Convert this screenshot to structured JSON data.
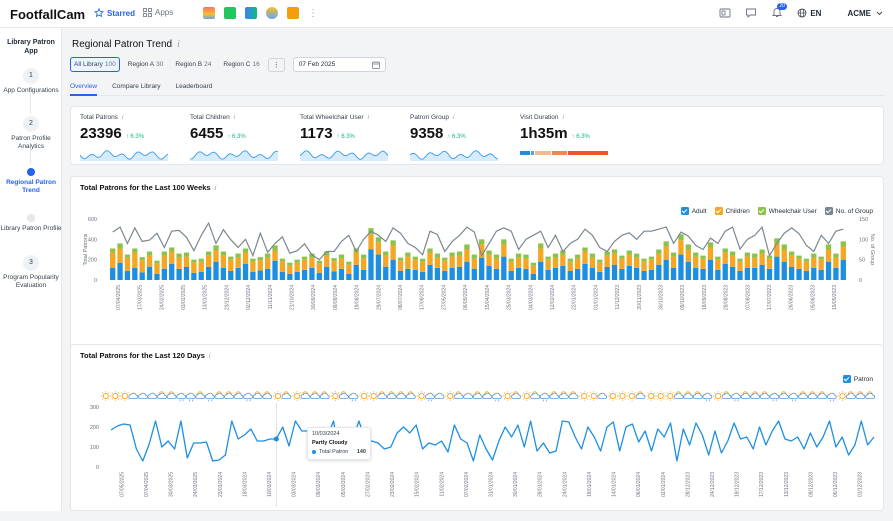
{
  "app": {
    "logo": "FootfallCam",
    "starred": "Starred",
    "apps": "Apps",
    "notif_count": "20",
    "lang": "EN",
    "account": "ACME"
  },
  "sidebar": {
    "title": "Library Patron App",
    "steps": [
      {
        "num": "1",
        "label": "App Configurations"
      },
      {
        "num": "2",
        "label": "Patron Profile Analytics"
      },
      {
        "num": "",
        "label": "Regional Patron Trend"
      },
      {
        "num": "",
        "label": "Library Patron Profile"
      },
      {
        "num": "3",
        "label": "Program Popularity Evaluation"
      }
    ]
  },
  "page": {
    "title": "Regional Patron Trend",
    "info": "i"
  },
  "filters": {
    "items": [
      {
        "label": "All Library",
        "count": "100"
      },
      {
        "label": "Region A",
        "count": "30"
      },
      {
        "label": "Region B",
        "count": "24"
      },
      {
        "label": "Region C",
        "count": "16"
      }
    ],
    "more": "⋮",
    "date": "07 Feb 2025"
  },
  "tabs": [
    "Overview",
    "Compare Library",
    "Leaderboard"
  ],
  "kpis": [
    {
      "label": "Total Patrons",
      "value": "23396",
      "change": "↑ 6.3%"
    },
    {
      "label": "Total Children",
      "value": "6455",
      "change": "↑ 6.3%"
    },
    {
      "label": "Total Wheelchair User",
      "value": "1173",
      "change": "↑ 6.3%"
    },
    {
      "label": "Patron Group",
      "value": "9358",
      "change": "↑ 6.3%"
    },
    {
      "label": "Visit Duration",
      "value": "1h35m",
      "change": "↑ 6.3%"
    }
  ],
  "colors": {
    "adult": "#1d8fe1",
    "children": "#f5a623",
    "wheelchair": "#8bc34a",
    "group": "#7b8791",
    "patron": "#1d8fe1",
    "accent": "#2563eb"
  },
  "chart_data": [
    {
      "type": "bar",
      "title": "Total Patrons for the Last 100 Weeks",
      "ylabel": "Total Patrons",
      "ylabel_right": "No. of Group",
      "ylim": [
        0,
        600
      ],
      "ylim_right": [
        0,
        150
      ],
      "yticks": [
        "600",
        "400",
        "200",
        "0"
      ],
      "yticks_right": [
        "150",
        "100",
        "50",
        "0"
      ],
      "legend": [
        "Adult",
        "Children",
        "Wheelchair User",
        "No. of Group"
      ],
      "legend_position": "top-right",
      "xtick_labels": [
        "07/04/2025",
        "17/03/2025",
        "24/02/2025",
        "03/02/2025",
        "13/01/2025",
        "23/12/2024",
        "02/12/2024",
        "11/11/2024",
        "21/10/2024",
        "30/09/2024",
        "09/09/2024",
        "19/08/2024",
        "29/07/2024",
        "08/07/2024",
        "17/06/2024",
        "27/05/2024",
        "06/05/2024",
        "15/04/2024",
        "25/03/2024",
        "04/03/2024",
        "12/02/2024",
        "22/01/2024",
        "01/01/2024",
        "11/12/2023",
        "20/11/2023",
        "30/10/2023",
        "09/10/2023",
        "18/09/2023",
        "28/08/2023",
        "07/08/2023",
        "17/07/2023",
        "26/06/2023",
        "05/06/2023",
        "15/05/2023"
      ],
      "series": [
        {
          "name": "Adult",
          "values": [
            120,
            170,
            90,
            120,
            75,
            130,
            60,
            110,
            160,
            110,
            130,
            70,
            80,
            130,
            180,
            120,
            90,
            120,
            160,
            80,
            95,
            110,
            190,
            80,
            60,
            80,
            100,
            120,
            70,
            130,
            85,
            110,
            60,
            150,
            100,
            300,
            250,
            130,
            200,
            90,
            110,
            100,
            80,
            150,
            120,
            90,
            120,
            130,
            180,
            110,
            220,
            140,
            110,
            230,
            90,
            120,
            110,
            60,
            180,
            100,
            120,
            140,
            90,
            110,
            160,
            120,
            80,
            130,
            150,
            110,
            140,
            120,
            90,
            100,
            150,
            200,
            120,
            250,
            180,
            120,
            110,
            200,
            100,
            160,
            130,
            90,
            120,
            120,
            150,
            110,
            230,
            180,
            130,
            110,
            90,
            120,
            100,
            180,
            120,
            200
          ]
        },
        {
          "name": "Children",
          "values": [
            150,
            140,
            130,
            150,
            120,
            110,
            100,
            130,
            120,
            110,
            100,
            100,
            100,
            110,
            110,
            120,
            110,
            100,
            110,
            100,
            100,
            110,
            100,
            100,
            80,
            90,
            100,
            100,
            90,
            110,
            100,
            100,
            90,
            120,
            110,
            150,
            120,
            110,
            140,
            100,
            120,
            100,
            100,
            120,
            100,
            100,
            110,
            110,
            120,
            100,
            130,
            110,
            100,
            120,
            90,
            100,
            100,
            80,
            130,
            100,
            100,
            110,
            90,
            100,
            120,
            100,
            90,
            110,
            110,
            100,
            110,
            100,
            90,
            100,
            110,
            130,
            110,
            140,
            120,
            110,
            100,
            120,
            100,
            110,
            110,
            90,
            110,
            100,
            110,
            100,
            130,
            120,
            110,
            100,
            90,
            100,
            100,
            120,
            100,
            130
          ]
        },
        {
          "name": "Wheelchair User",
          "values": [
            40,
            50,
            30,
            40,
            30,
            40,
            30,
            40,
            40,
            40,
            40,
            30,
            30,
            40,
            50,
            40,
            30,
            40,
            40,
            30,
            30,
            40,
            50,
            30,
            30,
            30,
            30,
            40,
            30,
            40,
            30,
            40,
            30,
            40,
            40,
            60,
            50,
            40,
            50,
            30,
            40,
            30,
            30,
            40,
            40,
            30,
            40,
            40,
            50,
            40,
            50,
            40,
            40,
            50,
            30,
            40,
            40,
            30,
            50,
            30,
            40,
            40,
            30,
            40,
            40,
            40,
            30,
            40,
            40,
            30,
            40,
            40,
            30,
            30,
            40,
            50,
            40,
            60,
            50,
            40,
            30,
            50,
            30,
            40,
            40,
            30,
            40,
            40,
            40,
            30,
            50,
            50,
            40,
            30,
            30,
            40,
            30,
            50,
            40,
            50
          ]
        },
        {
          "name": "No. of Group",
          "values": [
            118,
            130,
            90,
            128,
            95,
            98,
            115,
            80,
            120,
            122,
            105,
            72,
            110,
            140,
            90,
            124,
            99,
            80,
            100,
            60,
            115,
            68,
            90,
            106,
            66,
            72,
            89,
            62,
            50,
            70,
            70,
            95,
            110,
            70,
            100,
            120,
            110,
            95,
            128,
            115,
            90,
            80,
            62,
            120,
            112,
            70,
            95,
            110,
            130,
            118,
            60,
            90,
            120,
            128,
            120,
            75,
            100,
            110,
            120,
            80,
            110,
            70,
            90,
            100,
            125,
            110,
            80,
            70,
            95,
            110,
            116,
            100,
            120,
            120,
            125,
            130,
            90,
            118,
            108,
            85,
            75,
            103,
            90,
            120,
            130,
            76,
            100,
            110,
            130,
            60,
            90,
            115,
            128,
            114,
            85,
            70,
            110,
            90,
            120,
            125
          ]
        }
      ]
    },
    {
      "type": "line",
      "title": "Total Patrons for the Last 120 Days",
      "ylim": [
        0,
        300
      ],
      "yticks": [
        "300",
        "200",
        "100",
        "0"
      ],
      "legend": [
        "Patron"
      ],
      "legend_position": "top-right",
      "tooltip": {
        "date": "10/03/2024",
        "weather": "Partly Cloudy",
        "series": "Total Patron",
        "value": "140"
      },
      "weather": [
        "sunny",
        "sunny",
        "sunny",
        "cloudy",
        "cloudy",
        "cloudy",
        "partly-cloudy",
        "partly-cloudy",
        "rainy",
        "rainy",
        "partly-cloudy",
        "rainy",
        "partly-cloudy",
        "partly-cloudy",
        "partly-cloudy",
        "rainy",
        "partly-cloudy",
        "partly-cloudy",
        "sunny",
        "partly-cloudy",
        "sunny",
        "partly-cloudy",
        "partly-cloudy",
        "partly-cloudy",
        "sunny",
        "partly-cloudy",
        "rainy",
        "sunny",
        "sunny",
        "partly-cloudy",
        "partly-cloudy",
        "partly-cloudy",
        "partly-cloudy",
        "sunny",
        "rainy",
        "cloudy",
        "sunny",
        "partly-cloudy",
        "cloudy",
        "partly-cloudy",
        "partly-cloudy",
        "rainy",
        "sunny",
        "partly-cloudy",
        "sunny",
        "partly-cloudy",
        "rainy",
        "partly-cloudy",
        "partly-cloudy",
        "partly-cloudy",
        "sunny",
        "sunny",
        "cloudy",
        "sunny",
        "sunny",
        "sunny",
        "partly-cloudy",
        "sunny",
        "sunny",
        "sunny",
        "partly-cloudy",
        "partly-cloudy",
        "partly-cloudy",
        "rainy",
        "sunny",
        "partly-cloudy",
        "rainy",
        "partly-cloudy",
        "partly-cloudy",
        "partly-cloudy",
        "rainy",
        "partly-cloudy",
        "rainy",
        "partly-cloudy",
        "partly-cloudy",
        "partly-cloudy",
        "rainy",
        "sunny",
        "partly-cloudy",
        "partly-cloudy",
        "partly-cloudy"
      ],
      "xtick_labels": [
        "07/05/2025",
        "07/04/2025",
        "30/03/2025",
        "24/03/2025",
        "23/03/2024",
        "18/03/2024",
        "10/03/2024",
        "03/03/2024",
        "09/03/2024",
        "05/03/2024",
        "27/02/2024",
        "23/02/2024",
        "15/02/2024",
        "11/02/2024",
        "07/02/2024",
        "31/01/2024",
        "30/01/2024",
        "28/01/2024",
        "24/01/2024",
        "18/01/2024",
        "14/01/2024",
        "06/01/2024",
        "02/01/2024",
        "28/12/2023",
        "24/12/2023",
        "18/12/2023",
        "17/12/2023",
        "13/12/2023",
        "09/12/2023",
        "06/12/2023",
        "01/12/2023"
      ],
      "series": [
        {
          "name": "Patron",
          "values": [
            185,
            205,
            215,
            210,
            90,
            30,
            115,
            230,
            100,
            130,
            90,
            230,
            45,
            120,
            120,
            125,
            30,
            35,
            60,
            230,
            140,
            160,
            190,
            130,
            130,
            140,
            140,
            200,
            105,
            230,
            180,
            180,
            40,
            110,
            150,
            230,
            50,
            100,
            140,
            230,
            130,
            130,
            120,
            90,
            100,
            170,
            200,
            170,
            210,
            90,
            120,
            110,
            130,
            75,
            210,
            140,
            120,
            30,
            160,
            90,
            35,
            130,
            200,
            150,
            210,
            100,
            230,
            80,
            120,
            70,
            80,
            230,
            225,
            150,
            90,
            200,
            150,
            80,
            200,
            225,
            80,
            200,
            215,
            125,
            180,
            80,
            190,
            150,
            220,
            30,
            190,
            110,
            220,
            160,
            60,
            180,
            70,
            130,
            220,
            140,
            150,
            90,
            200,
            110,
            180,
            230,
            140,
            130,
            150,
            90,
            170,
            100,
            150,
            230,
            100,
            150,
            60,
            110,
            230,
            110,
            150
          ]
        }
      ]
    }
  ]
}
